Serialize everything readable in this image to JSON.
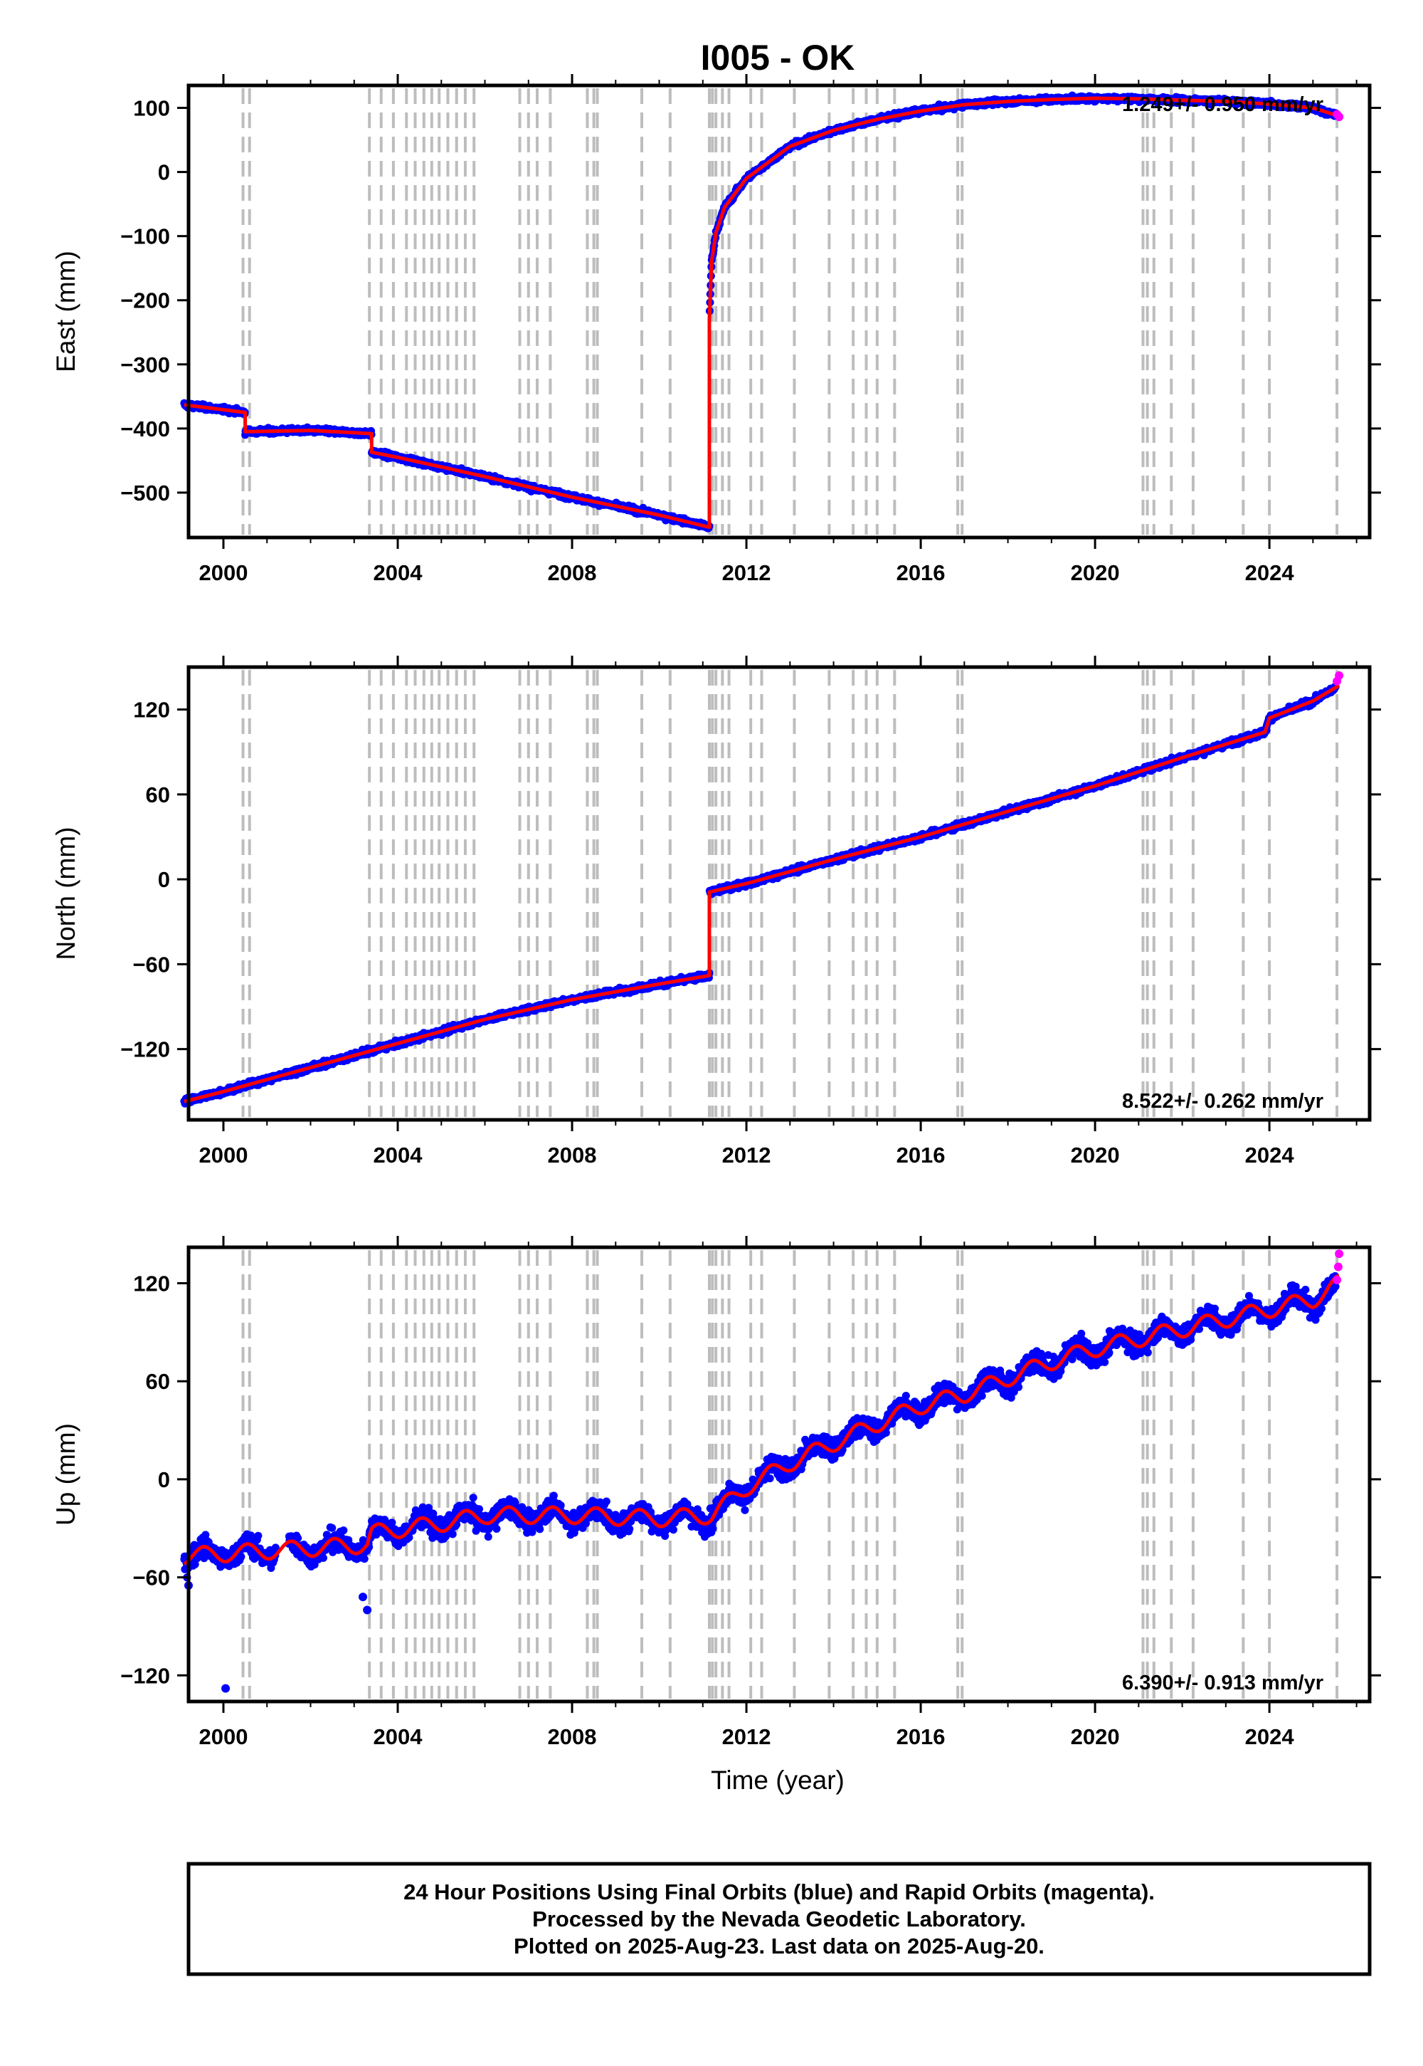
{
  "chart_data": {
    "type": "scatter",
    "title": "I005 - OK",
    "xlabel": "Time (year)",
    "x_ticks": [
      2000,
      2004,
      2008,
      2012,
      2016,
      2020,
      2024
    ],
    "xlim": [
      1999.2,
      2026.3
    ],
    "grid": false,
    "colors": {
      "final_orbits": "#0000ff",
      "rapid_orbits": "#ff00ff",
      "model": "#ff0000",
      "event_lines": "#bdbdbd"
    },
    "event_lines": [
      2000.45,
      2000.6,
      2003.35,
      2003.62,
      2003.9,
      2004.2,
      2004.4,
      2004.6,
      2004.78,
      2004.95,
      2005.15,
      2005.35,
      2005.55,
      2005.75,
      2006.8,
      2007.0,
      2007.2,
      2007.5,
      2008.35,
      2008.5,
      2008.58,
      2009.6,
      2010.25,
      2011.15,
      2011.22,
      2011.3,
      2011.45,
      2011.6,
      2012.1,
      2012.35,
      2013.1,
      2013.9,
      2014.45,
      2014.75,
      2015.0,
      2015.4,
      2016.85,
      2016.95,
      2021.1,
      2021.2,
      2021.35,
      2021.75,
      2022.25,
      2023.4,
      2024.0,
      2025.55
    ],
    "panels": [
      {
        "name": "East",
        "ylabel": "East (mm)",
        "ylim": [
          -570,
          135
        ],
        "y_ticks": [
          100,
          0,
          -100,
          -200,
          -300,
          -400,
          -500
        ],
        "y_tick_labels": [
          "100",
          "0",
          "−100",
          "−200",
          "−300",
          "−400",
          "−500"
        ],
        "rate_label": "1.249+/- 0.950 mm/yr",
        "rate_position": "top-right",
        "noise": 5,
        "model_x": [
          1999.1,
          2000.5,
          2000.5,
          2002.0,
          2003.4,
          2003.4,
          2004.0,
          2006.0,
          2008.0,
          2010.0,
          2011.15,
          2011.15,
          2011.2,
          2011.3,
          2011.5,
          2012.0,
          2013.0,
          2014.0,
          2015.0,
          2016.0,
          2017.0,
          2018.0,
          2019.0,
          2020.0,
          2021.0,
          2022.0,
          2023.0,
          2024.0,
          2025.0,
          2025.6
        ],
        "model_y": [
          -363,
          -375,
          -405,
          -403,
          -408,
          -437,
          -445,
          -475,
          -507,
          -535,
          -554,
          -230,
          -140,
          -95,
          -55,
          -10,
          40,
          65,
          82,
          95,
          105,
          110,
          113,
          115,
          114,
          112,
          110,
          106,
          100,
          87
        ],
        "rapid_x": [
          2025.55,
          2025.6
        ],
        "rapid_y": [
          90,
          86
        ]
      },
      {
        "name": "North",
        "ylabel": "North (mm)",
        "ylim": [
          -170,
          150
        ],
        "y_ticks": [
          120,
          60,
          0,
          -60,
          -120
        ],
        "y_tick_labels": [
          "120",
          "60",
          "0",
          "−60",
          "−120"
        ],
        "rate_label": "8.522+/- 0.262 mm/yr",
        "rate_position": "bottom-right",
        "noise": 2.5,
        "model_x": [
          1999.1,
          2000.0,
          2002.0,
          2004.0,
          2006.0,
          2008.0,
          2010.0,
          2011.15,
          2011.15,
          2012.0,
          2014.0,
          2016.0,
          2018.0,
          2020.0,
          2022.0,
          2023.9,
          2024.0,
          2025.0,
          2025.6
        ],
        "model_y": [
          -157,
          -150,
          -133,
          -116,
          -99,
          -85,
          -74,
          -68,
          -9,
          -3,
          14,
          30,
          48,
          66,
          86,
          104,
          114,
          126,
          137
        ],
        "rapid_x": [
          2025.55,
          2025.6
        ],
        "rapid_y": [
          140,
          144
        ]
      },
      {
        "name": "Up",
        "ylabel": "Up (mm)",
        "ylim": [
          -136,
          142
        ],
        "y_ticks": [
          120,
          60,
          0,
          -60,
          -120
        ],
        "y_tick_labels": [
          "120",
          "60",
          "0",
          "−60",
          "−120"
        ],
        "rate_label": "6.390+/- 0.913 mm/yr",
        "rate_position": "bottom-right",
        "noise": 8,
        "seasonal_amp": 5,
        "model_x": [
          1999.1,
          2003.3,
          2003.4,
          2005.0,
          2006.0,
          2008.0,
          2010.0,
          2011.2,
          2012.0,
          2013.0,
          2014.0,
          2015.0,
          2016.0,
          2017.0,
          2018.0,
          2019.0,
          2020.0,
          2021.0,
          2022.0,
          2023.0,
          2024.0,
          2025.0,
          2025.6
        ],
        "model_y": [
          -47,
          -40,
          -33,
          -27,
          -22,
          -22,
          -24,
          -22,
          -5,
          10,
          22,
          34,
          45,
          52,
          62,
          72,
          80,
          86,
          92,
          98,
          104,
          110,
          120
        ],
        "outliers_x": [
          1999.2,
          2000.05,
          2003.2,
          2003.3
        ],
        "outliers_y": [
          -65,
          -128,
          -72,
          -80
        ],
        "rapid_x": [
          2025.55,
          2025.58,
          2025.6
        ],
        "rapid_y": [
          122,
          130,
          138
        ]
      }
    ]
  },
  "footer": {
    "line1": "24 Hour Positions Using Final Orbits (blue) and Rapid Orbits (magenta).",
    "line2": "Processed by the Nevada Geodetic Laboratory.",
    "line3": "Plotted on 2025-Aug-23. Last data on 2025-Aug-20."
  }
}
